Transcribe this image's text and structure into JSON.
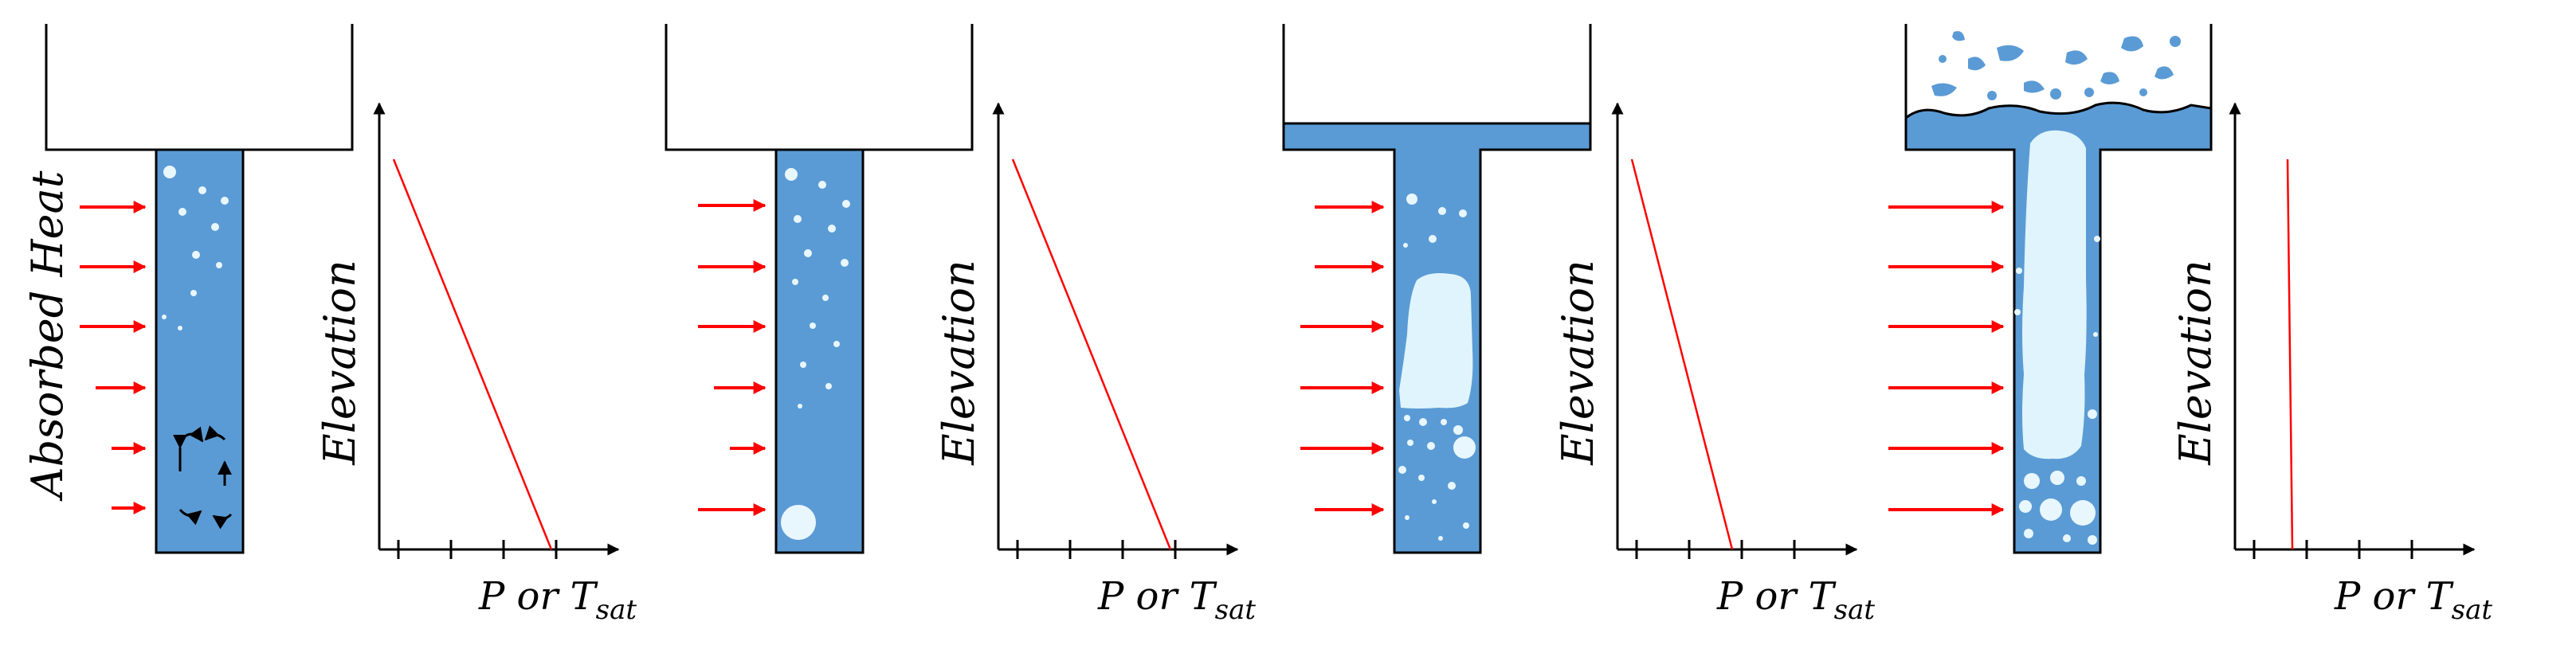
{
  "colors": {
    "water": "#5b9bd5",
    "vapor": "#dff4fc",
    "bubble": "#e8f7fd",
    "heat_arrow": "#ff0000",
    "profile_line": "#ff0000",
    "outline": "#000000"
  },
  "side_label": "Absorbed Heat",
  "stages": [
    {
      "name": "stage-1",
      "y_axis_label": "Elevation",
      "x_axis_label": {
        "base": "P or T",
        "subscript": "sat"
      },
      "profile": {
        "top_x": 0.06,
        "bottom_x": 0.72
      }
    },
    {
      "name": "stage-2",
      "y_axis_label": "Elevation",
      "x_axis_label": {
        "base": "P or T",
        "subscript": "sat"
      },
      "profile": {
        "top_x": 0.06,
        "bottom_x": 0.72
      }
    },
    {
      "name": "stage-3",
      "y_axis_label": "Elevation",
      "x_axis_label": {
        "base": "P or T",
        "subscript": "sat"
      },
      "profile": {
        "top_x": 0.06,
        "bottom_x": 0.48
      }
    },
    {
      "name": "stage-4",
      "y_axis_label": "Elevation",
      "x_axis_label": {
        "base": "P or T",
        "subscript": "sat"
      },
      "profile": {
        "top_x": 0.22,
        "bottom_x": 0.24
      }
    }
  ]
}
